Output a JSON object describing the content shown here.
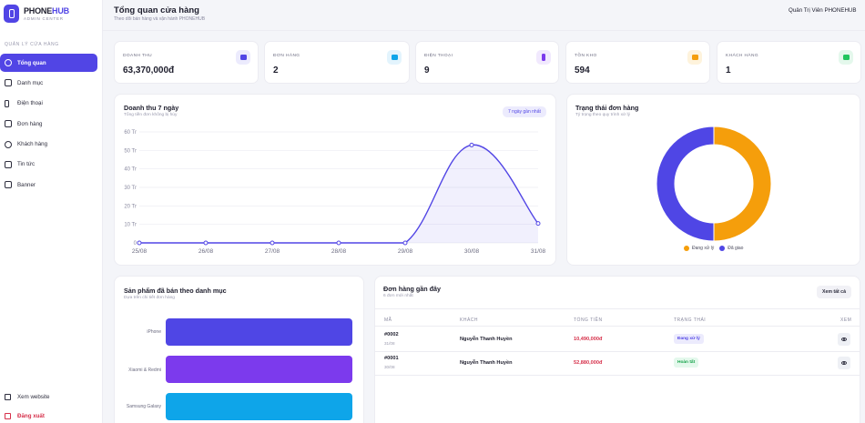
{
  "brand": {
    "name_part1": "PHONE",
    "name_part2": "HUB",
    "subtitle": "ADMIN CENTER"
  },
  "sidebar": {
    "section_label": "QUẢN LÝ CỬA HÀNG",
    "items": [
      {
        "label": "Tổng quan",
        "icon": "dashboard-icon",
        "active": true
      },
      {
        "label": "Danh mục",
        "icon": "category-icon"
      },
      {
        "label": "Điện thoại",
        "icon": "phone-icon"
      },
      {
        "label": "Đơn hàng",
        "icon": "order-icon"
      },
      {
        "label": "Khách hàng",
        "icon": "users-icon"
      },
      {
        "label": "Tin tức",
        "icon": "news-icon"
      },
      {
        "label": "Banner",
        "icon": "banner-icon"
      }
    ],
    "bottom": {
      "view_site": "Xem website",
      "logout": "Đăng xuất"
    }
  },
  "header": {
    "title": "Tổng quan cửa hàng",
    "subtitle": "Theo dõi bán hàng và vận hành PHONEHUB",
    "user": "Quản Trị Viên PHONEHUB"
  },
  "stats": [
    {
      "label": "DOANH THU",
      "value": "63,370,000đ",
      "icon": "wallet-icon",
      "color": "#5145e5",
      "bg": "#ecebfd"
    },
    {
      "label": "ĐƠN HÀNG",
      "value": "2",
      "icon": "bag-icon",
      "color": "#0ea5e9",
      "bg": "#e3f4fd"
    },
    {
      "label": "ĐIỆN THOẠI",
      "value": "9",
      "icon": "phone-icon",
      "color": "#7c3aed",
      "bg": "#f1e9fe"
    },
    {
      "label": "TỒN KHO",
      "value": "594",
      "icon": "box-icon",
      "color": "#f59e0b",
      "bg": "#fef3dc"
    },
    {
      "label": "KHÁCH HÀNG",
      "value": "1",
      "icon": "users-icon",
      "color": "#22c55e",
      "bg": "#e4f8ec"
    }
  ],
  "revenue": {
    "title": "Doanh thu 7 ngày",
    "subtitle": "Tổng tiền đơn không bị hủy",
    "badge": "7 ngày gần nhất"
  },
  "status": {
    "title": "Trạng thái đơn hàng",
    "subtitle": "Tỷ trọng theo quy trình xử lý"
  },
  "category": {
    "title": "Sản phẩm đã bán theo danh mục",
    "subtitle": "Dựa trên chi tiết đơn hàng"
  },
  "orders": {
    "title": "Đơn hàng gần đây",
    "subtitle": "6 đơn mới nhất",
    "view_all": "Xem tất cả",
    "columns": [
      "MÃ",
      "KHÁCH",
      "TỔNG TIỀN",
      "TRẠNG THÁI",
      "XEM"
    ],
    "rows": [
      {
        "code": "#0002",
        "date": "31/08",
        "customer": "Nguyễn Thanh Huyền",
        "total": "10,490,000đ",
        "status": "Đang xử lý",
        "status_color": "#5145e5",
        "status_bg": "#ecebfd"
      },
      {
        "code": "#0001",
        "date": "30/08",
        "customer": "Nguyễn Thanh Huyền",
        "total": "52,880,000đ",
        "status": "Hoàn tất",
        "status_color": "#16a34a",
        "status_bg": "#e4f8ec"
      }
    ]
  },
  "chart_data": [
    {
      "type": "area",
      "x": [
        "25/08",
        "26/08",
        "27/08",
        "28/08",
        "29/08",
        "30/08",
        "31/08"
      ],
      "series": [
        {
          "values": [
            0,
            0,
            0,
            0,
            0,
            52.9,
            10.5
          ]
        }
      ],
      "y_ticks": [
        "0",
        "10 Tr",
        "20 Tr",
        "30 Tr",
        "40 Tr",
        "50 Tr",
        "60 Tr"
      ],
      "ylim": [
        0,
        60
      ],
      "grid": true,
      "color": "#5145e5"
    },
    {
      "type": "pie",
      "categories": [
        "Đang xử lý",
        "Đã giao"
      ],
      "values": [
        1,
        1
      ],
      "colors": [
        "#f59e0b",
        "#4f46e5"
      ],
      "legend": "bottom"
    },
    {
      "type": "bar",
      "orientation": "horizontal",
      "categories": [
        "iPhone",
        "Xiaomi & Redmi",
        "Samsung Galaxy"
      ],
      "values": [
        1,
        1,
        1
      ],
      "colors": [
        "#4f46e5",
        "#7c3aed",
        "#0ea5e9"
      ]
    }
  ]
}
